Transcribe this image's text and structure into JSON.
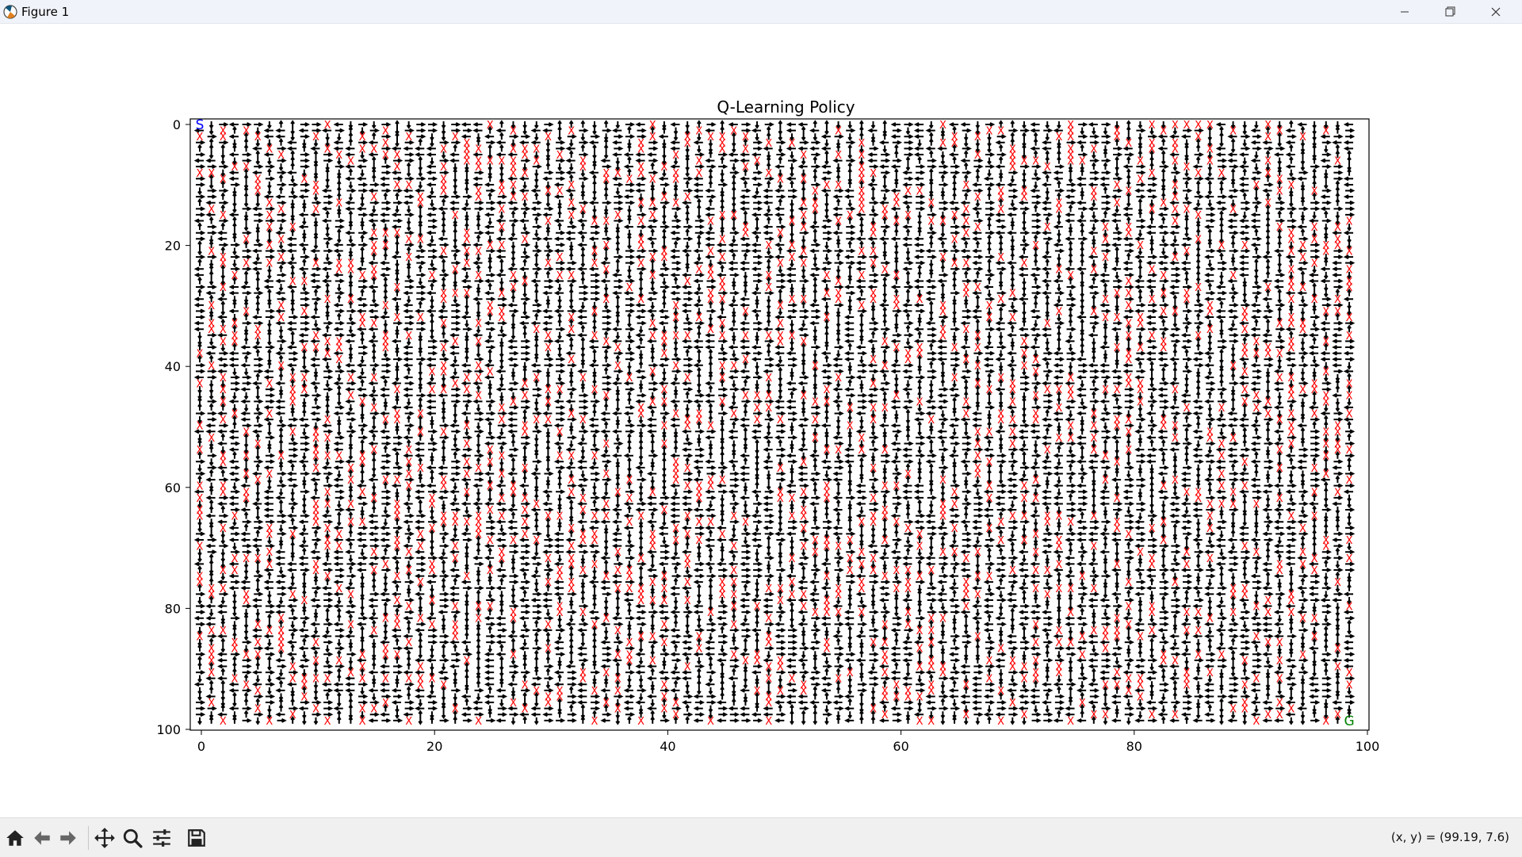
{
  "window": {
    "title": "Figure 1"
  },
  "toolbar": {
    "tools": [
      "home-icon",
      "back-icon",
      "forward-icon",
      "pan-icon",
      "zoom-icon",
      "configure-subplots-icon",
      "save-icon"
    ],
    "coordinates": "(x, y) = (99.19, 7.6)"
  },
  "chart_data": {
    "type": "heatmap",
    "title": "Q-Learning Policy",
    "xlabel": "",
    "ylabel": "",
    "grid_size": 100,
    "xlim": [
      0,
      100
    ],
    "ylim": [
      100,
      0
    ],
    "x_ticks": [
      "0",
      "20",
      "40",
      "60",
      "80",
      "100"
    ],
    "y_ticks": [
      "0",
      "20",
      "40",
      "60",
      "80",
      "100"
    ],
    "start": {
      "label": "S",
      "x": 0,
      "y": 0,
      "color": "#0000ff"
    },
    "goal": {
      "label": "G",
      "x": 99,
      "y": 99,
      "color": "#008000"
    },
    "obstacle": {
      "label": "X",
      "color": "#ff0000",
      "approx_density": 0.15
    },
    "policy_arrows": {
      "symbols": [
        "up",
        "down",
        "left",
        "right"
      ],
      "color": "#000000"
    }
  }
}
